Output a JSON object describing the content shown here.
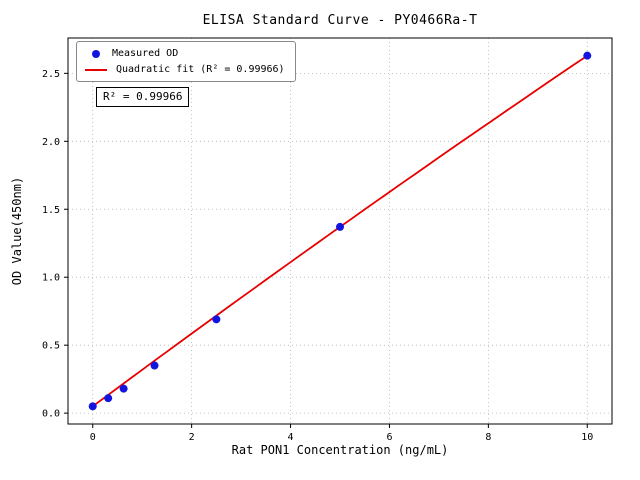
{
  "chart_data": {
    "type": "scatter",
    "title": "ELISA Standard Curve - PY0466Ra-T",
    "xlabel": "Rat PON1 Concentration (ng/mL)",
    "ylabel": "OD Value(450nm)",
    "x": [
      0,
      0.3125,
      0.625,
      1.25,
      2.5,
      5,
      10
    ],
    "y": [
      0.05,
      0.11,
      0.18,
      0.35,
      0.69,
      1.37,
      2.63
    ],
    "series": [
      {
        "name": "Measured OD",
        "kind": "scatter"
      },
      {
        "name": "Quadratic fit (R² = 0.99966)",
        "kind": "line"
      }
    ],
    "fit": {
      "type": "quadratic",
      "a": -0.0012,
      "b": 0.27,
      "c": 0.05,
      "x_start": 0,
      "x_end": 10
    },
    "xlim": [
      -0.5,
      10.5
    ],
    "ylim": [
      -0.08,
      2.76
    ],
    "xticks": [
      0,
      2,
      4,
      6,
      8,
      10
    ],
    "xtick_labels": [
      "0",
      "2",
      "4",
      "6",
      "8",
      "10"
    ],
    "yticks": [
      0,
      0.5,
      1.0,
      1.5,
      2.0,
      2.5
    ],
    "ytick_labels": [
      "0.0",
      "0.5",
      "1.0",
      "1.5",
      "2.0",
      "2.5"
    ],
    "grid": true,
    "legend_position": "upper-left",
    "legend": [
      "Measured OD",
      "Quadratic fit (R² = 0.99966)"
    ],
    "annotation": "R² = 0.99966",
    "r_squared": 0.99966,
    "colors": {
      "point": "#1414e0",
      "line": "#e80000",
      "grid": "#b3b3b3",
      "axis": "#000000"
    }
  }
}
